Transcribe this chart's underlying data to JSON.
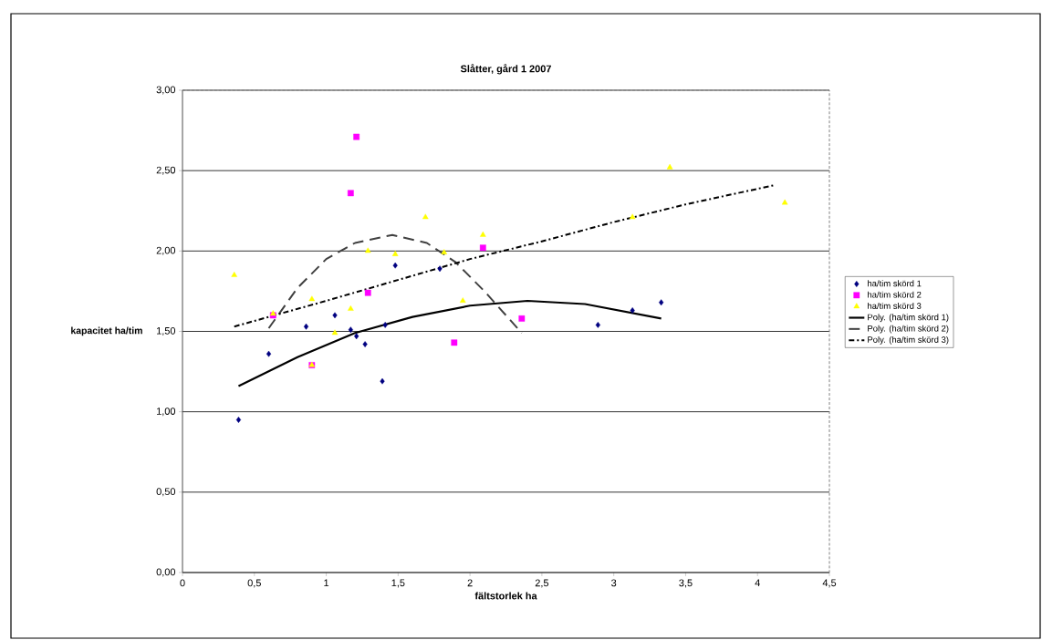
{
  "chart_data": {
    "type": "scatter",
    "title": "Slåtter, gård 1 2007",
    "xlabel": "fältstorlek ha",
    "ylabel": "kapacitet ha/tim",
    "xlim": [
      0,
      4.5
    ],
    "ylim": [
      0,
      3
    ],
    "xticks": [
      0,
      {
        "value": 0.5,
        "label": "0,5"
      },
      1,
      {
        "value": 1.5,
        "label": "1,5"
      },
      2,
      {
        "value": 2.5,
        "label": "2,5"
      },
      3,
      {
        "value": 3.5,
        "label": "3,5"
      },
      4,
      {
        "value": 4.5,
        "label": "4,5"
      }
    ],
    "yticks": [
      {
        "value": 0,
        "label": "0,00"
      },
      {
        "value": 0.5,
        "label": "0,50"
      },
      {
        "value": 1,
        "label": "1,00"
      },
      {
        "value": 1.5,
        "label": "1,50"
      },
      {
        "value": 2,
        "label": "2,00"
      },
      {
        "value": 2.5,
        "label": "2,50"
      },
      {
        "value": 3,
        "label": "3,00"
      }
    ],
    "grid": "y",
    "legend": "right",
    "series": [
      {
        "name": "ha/tim skörd 1",
        "marker": "diamond",
        "color": "#000080",
        "x": [
          0.39,
          0.6,
          0.86,
          1.06,
          1.17,
          1.21,
          1.27,
          1.39,
          1.41,
          1.48,
          1.79,
          2.89,
          3.13,
          3.33
        ],
        "values": [
          0.95,
          1.36,
          1.53,
          1.6,
          1.51,
          1.47,
          1.42,
          1.19,
          1.54,
          1.91,
          1.89,
          1.54,
          1.63,
          1.68
        ]
      },
      {
        "name": "ha/tim skörd 2",
        "marker": "square",
        "color": "#ff00ff",
        "x": [
          0.63,
          0.9,
          1.21,
          1.17,
          1.29,
          1.89,
          2.09,
          2.36
        ],
        "values": [
          1.6,
          1.29,
          2.71,
          2.36,
          1.74,
          1.43,
          2.02,
          1.58
        ]
      },
      {
        "name": "ha/tim skörd 3",
        "marker": "triangle",
        "color": "#ffff00",
        "x": [
          0.36,
          0.63,
          0.9,
          0.9,
          1.06,
          1.17,
          1.29,
          1.48,
          1.69,
          1.82,
          1.95,
          2.09,
          3.13,
          3.39,
          4.19
        ],
        "values": [
          1.85,
          1.61,
          1.29,
          1.7,
          1.49,
          1.64,
          2.0,
          1.98,
          2.21,
          1.99,
          1.69,
          2.1,
          2.21,
          2.52,
          2.3
        ]
      },
      {
        "name": "Poly. (ha/tim skörd 1)",
        "type": "line",
        "marker": "none",
        "line_style": "solid",
        "color": "#000000",
        "x": [
          0.39,
          0.8,
          1.2,
          1.6,
          2.0,
          2.4,
          2.8,
          3.33
        ],
        "values": [
          1.16,
          1.34,
          1.49,
          1.59,
          1.66,
          1.69,
          1.67,
          1.58
        ]
      },
      {
        "name": "Poly. (ha/tim skörd 2)",
        "type": "line",
        "marker": "none",
        "line_style": "dashed",
        "color": "#404040",
        "x": [
          0.6,
          0.8,
          1.0,
          1.2,
          1.46,
          1.7,
          1.9,
          2.1,
          2.36
        ],
        "values": [
          1.52,
          1.77,
          1.95,
          2.05,
          2.1,
          2.05,
          1.93,
          1.75,
          1.49
        ]
      },
      {
        "name": "Poly. (ha/tim skörd 3)",
        "type": "line",
        "marker": "none",
        "line_style": "dotted",
        "color": "#000000",
        "x": [
          0.36,
          1.0,
          1.5,
          2.0,
          2.5,
          3.0,
          3.5,
          4.12
        ],
        "values": [
          1.53,
          1.69,
          1.82,
          1.95,
          2.06,
          2.18,
          2.29,
          2.41
        ]
      }
    ]
  }
}
